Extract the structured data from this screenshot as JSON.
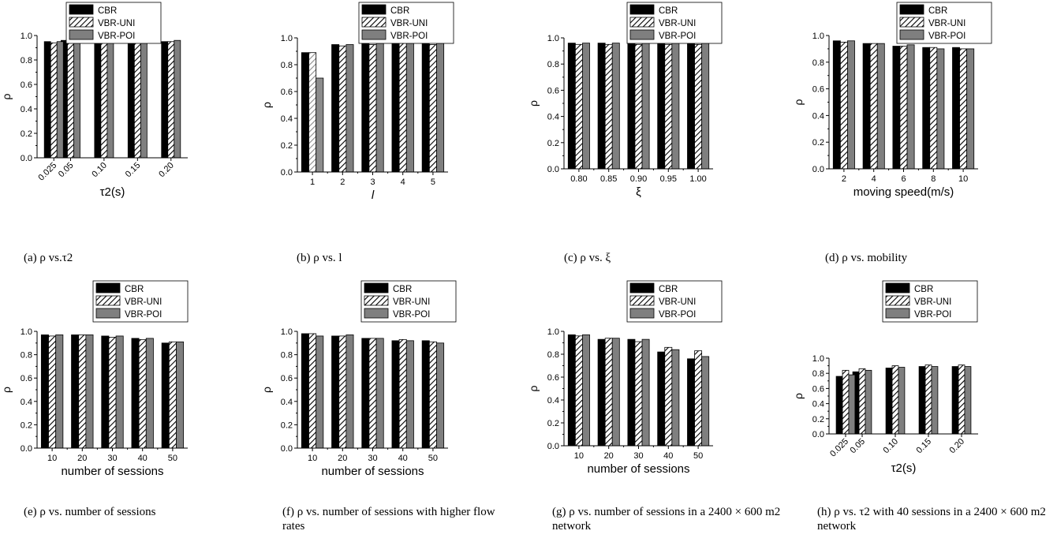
{
  "legend_entries": [
    "CBR",
    "VBR-UNI",
    "VBR-POI"
  ],
  "colors": {
    "CBR": "#000000",
    "VBR-UNI": "#ffffff",
    "VBR-POI": "#7f7f7f",
    "hatch": "#000000",
    "hatch_light": "#8a8a8a"
  },
  "chart_data": [
    {
      "type": "bar",
      "panel": "a",
      "caption": "(a) ρ vs.τ2",
      "x": [
        0.025,
        0.05,
        0.1,
        0.15,
        0.2
      ],
      "x_tick_labels": [
        "0.025",
        "0.05",
        "0.10",
        "0.15",
        "0.20"
      ],
      "x_axis": "numeric",
      "xlim": [
        0,
        0.225
      ],
      "xlabel": "τ2(s)",
      "ylabel": "ρ",
      "ylim": [
        0,
        1.0
      ],
      "y_ticks": [
        "0.0",
        "0.2",
        "0.4",
        "0.6",
        "0.8",
        "1.0"
      ],
      "series": [
        {
          "name": "CBR",
          "values": [
            0.95,
            0.96,
            0.97,
            0.96,
            0.95
          ]
        },
        {
          "name": "VBR-UNI",
          "values": [
            0.94,
            0.95,
            0.96,
            0.96,
            0.95
          ]
        },
        {
          "name": "VBR-POI",
          "values": [
            0.95,
            0.96,
            0.97,
            0.96,
            0.96
          ]
        }
      ]
    },
    {
      "type": "bar",
      "panel": "b",
      "caption": "(b) ρ vs. l",
      "categories": [
        "1",
        "2",
        "3",
        "4",
        "5"
      ],
      "xlabel": "l",
      "ylabel": "ρ",
      "ylim": [
        0,
        1.0
      ],
      "y_ticks": [
        "0.0",
        "0.2",
        "0.4",
        "0.6",
        "0.8",
        "1.0"
      ],
      "series": [
        {
          "name": "CBR",
          "values": [
            0.89,
            0.95,
            0.96,
            0.96,
            0.96
          ]
        },
        {
          "name": "VBR-UNI",
          "values": [
            0.89,
            0.94,
            0.95,
            0.96,
            0.95
          ]
        },
        {
          "name": "VBR-POI",
          "values": [
            0.7,
            0.95,
            0.96,
            0.96,
            0.96
          ]
        }
      ]
    },
    {
      "type": "bar",
      "panel": "c",
      "caption": "(c) ρ vs. ξ",
      "categories": [
        "0.80",
        "0.85",
        "0.90",
        "0.95",
        "1.00"
      ],
      "xlabel": "ξ",
      "ylabel": "ρ",
      "ylim": [
        0,
        1.0
      ],
      "y_ticks": [
        "0.0",
        "0.2",
        "0.4",
        "0.6",
        "0.8",
        "1.0"
      ],
      "series": [
        {
          "name": "CBR",
          "values": [
            0.96,
            0.96,
            0.96,
            0.96,
            0.96
          ]
        },
        {
          "name": "VBR-UNI",
          "values": [
            0.95,
            0.95,
            0.95,
            0.95,
            0.95
          ]
        },
        {
          "name": "VBR-POI",
          "values": [
            0.96,
            0.96,
            0.96,
            0.96,
            0.96
          ]
        }
      ]
    },
    {
      "type": "bar",
      "panel": "d",
      "caption": "(d) ρ vs. mobility",
      "categories": [
        "2",
        "4",
        "6",
        "8",
        "10"
      ],
      "xlabel": "moving speed(m/s)",
      "ylabel": "ρ",
      "ylim": [
        0,
        1.0
      ],
      "y_ticks": [
        "0.0",
        "0.2",
        "0.4",
        "0.6",
        "0.8",
        "1.0"
      ],
      "series": [
        {
          "name": "CBR",
          "values": [
            0.96,
            0.94,
            0.92,
            0.91,
            0.91
          ]
        },
        {
          "name": "VBR-UNI",
          "values": [
            0.95,
            0.94,
            0.92,
            0.91,
            0.9
          ]
        },
        {
          "name": "VBR-POI",
          "values": [
            0.96,
            0.94,
            0.93,
            0.9,
            0.9
          ]
        }
      ]
    },
    {
      "type": "bar",
      "panel": "e",
      "caption": "(e) ρ vs. number of sessions",
      "categories": [
        "10",
        "20",
        "30",
        "40",
        "50"
      ],
      "xlabel": "number of sessions",
      "ylabel": "ρ",
      "ylim": [
        0,
        1.0
      ],
      "y_ticks": [
        "0.0",
        "0.2",
        "0.4",
        "0.6",
        "0.8",
        "1.0"
      ],
      "series": [
        {
          "name": "CBR",
          "values": [
            0.97,
            0.97,
            0.96,
            0.94,
            0.9
          ]
        },
        {
          "name": "VBR-UNI",
          "values": [
            0.96,
            0.97,
            0.95,
            0.93,
            0.91
          ]
        },
        {
          "name": "VBR-POI",
          "values": [
            0.97,
            0.97,
            0.96,
            0.94,
            0.91
          ]
        }
      ]
    },
    {
      "type": "bar",
      "panel": "f",
      "caption": "(f) ρ vs. number of sessions with higher flow rates",
      "categories": [
        "10",
        "20",
        "30",
        "40",
        "50"
      ],
      "xlabel": "number of sessions",
      "ylabel": "ρ",
      "ylim": [
        0,
        1.0
      ],
      "y_ticks": [
        "0.0",
        "0.2",
        "0.4",
        "0.6",
        "0.8",
        "1.0"
      ],
      "series": [
        {
          "name": "CBR",
          "values": [
            0.98,
            0.96,
            0.94,
            0.92,
            0.92
          ]
        },
        {
          "name": "VBR-UNI",
          "values": [
            0.98,
            0.96,
            0.94,
            0.93,
            0.91
          ]
        },
        {
          "name": "VBR-POI",
          "values": [
            0.96,
            0.97,
            0.94,
            0.92,
            0.9
          ]
        }
      ]
    },
    {
      "type": "bar",
      "panel": "g",
      "caption": "(g) ρ vs. number of sessions in a 2400 × 600 m2 network",
      "categories": [
        "10",
        "20",
        "30",
        "40",
        "50"
      ],
      "xlabel": "number of sessions",
      "ylabel": "ρ",
      "ylim": [
        0,
        1.0
      ],
      "y_ticks": [
        "0.0",
        "0.2",
        "0.4",
        "0.6",
        "0.8",
        "1.0"
      ],
      "series": [
        {
          "name": "CBR",
          "values": [
            0.97,
            0.93,
            0.93,
            0.82,
            0.76
          ]
        },
        {
          "name": "VBR-UNI",
          "values": [
            0.96,
            0.94,
            0.91,
            0.86,
            0.83
          ]
        },
        {
          "name": "VBR-POI",
          "values": [
            0.97,
            0.94,
            0.93,
            0.84,
            0.78
          ]
        }
      ]
    },
    {
      "type": "bar",
      "panel": "h",
      "caption": "(h) ρ vs. τ2 with 40 sessions in a 2400 × 600 m2 network",
      "x": [
        0.025,
        0.05,
        0.1,
        0.15,
        0.2
      ],
      "x_tick_labels": [
        "0.025",
        "0.05",
        "0.10",
        "0.15",
        "0.20"
      ],
      "x_axis": "numeric",
      "xlim": [
        0,
        0.225
      ],
      "xlabel": "τ2(s)",
      "ylabel": "ρ",
      "ylim": [
        0,
        1.0
      ],
      "y_ticks": [
        "0.0",
        "0.2",
        "0.4",
        "0.6",
        "0.8",
        "1.0"
      ],
      "series": [
        {
          "name": "CBR",
          "values": [
            0.76,
            0.82,
            0.87,
            0.89,
            0.89
          ]
        },
        {
          "name": "VBR-UNI",
          "values": [
            0.84,
            0.86,
            0.9,
            0.91,
            0.91
          ]
        },
        {
          "name": "VBR-POI",
          "values": [
            0.78,
            0.84,
            0.88,
            0.89,
            0.89
          ]
        }
      ]
    }
  ]
}
